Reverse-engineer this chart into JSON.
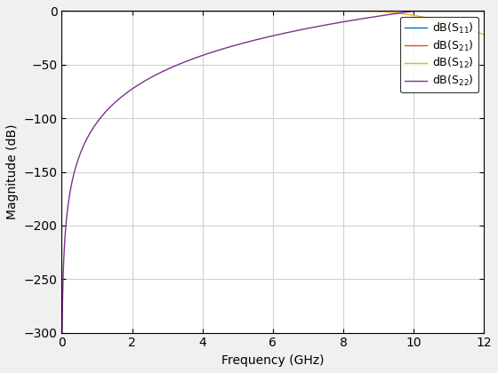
{
  "title": "",
  "xlabel": "Frequency (GHz)",
  "ylabel": "Magnitude (dB)",
  "xlim": [
    0,
    12
  ],
  "ylim": [
    -300,
    0
  ],
  "xticks": [
    0,
    2,
    4,
    6,
    8,
    10,
    12
  ],
  "yticks": [
    0,
    -50,
    -100,
    -150,
    -200,
    -250,
    -300
  ],
  "grid": true,
  "figsize": [
    5.6,
    4.2
  ],
  "dpi": 100,
  "lines": [
    {
      "label": "dB(S$_{11}$)",
      "color": "#0072BD",
      "linewidth": 1.0
    },
    {
      "label": "dB(S$_{21}$)",
      "color": "#D95319",
      "linewidth": 1.0
    },
    {
      "label": "dB(S$_{12}$)",
      "color": "#EDB120",
      "linewidth": 1.0
    },
    {
      "label": "dB(S$_{22}$)",
      "color": "#7E2F8E",
      "linewidth": 1.0
    }
  ],
  "s22_a": 104.0,
  "s22_b": -31.3,
  "s12_drop_start": 8.5,
  "s12_drop_rate": 1.8,
  "legend_loc": "upper right",
  "background_color": "#f0f0f0",
  "ax_background_color": "#ffffff",
  "grid_color": "#d0d0d0",
  "legend_fontsize": 9,
  "label_fontsize": 10,
  "tick_fontsize": 10
}
